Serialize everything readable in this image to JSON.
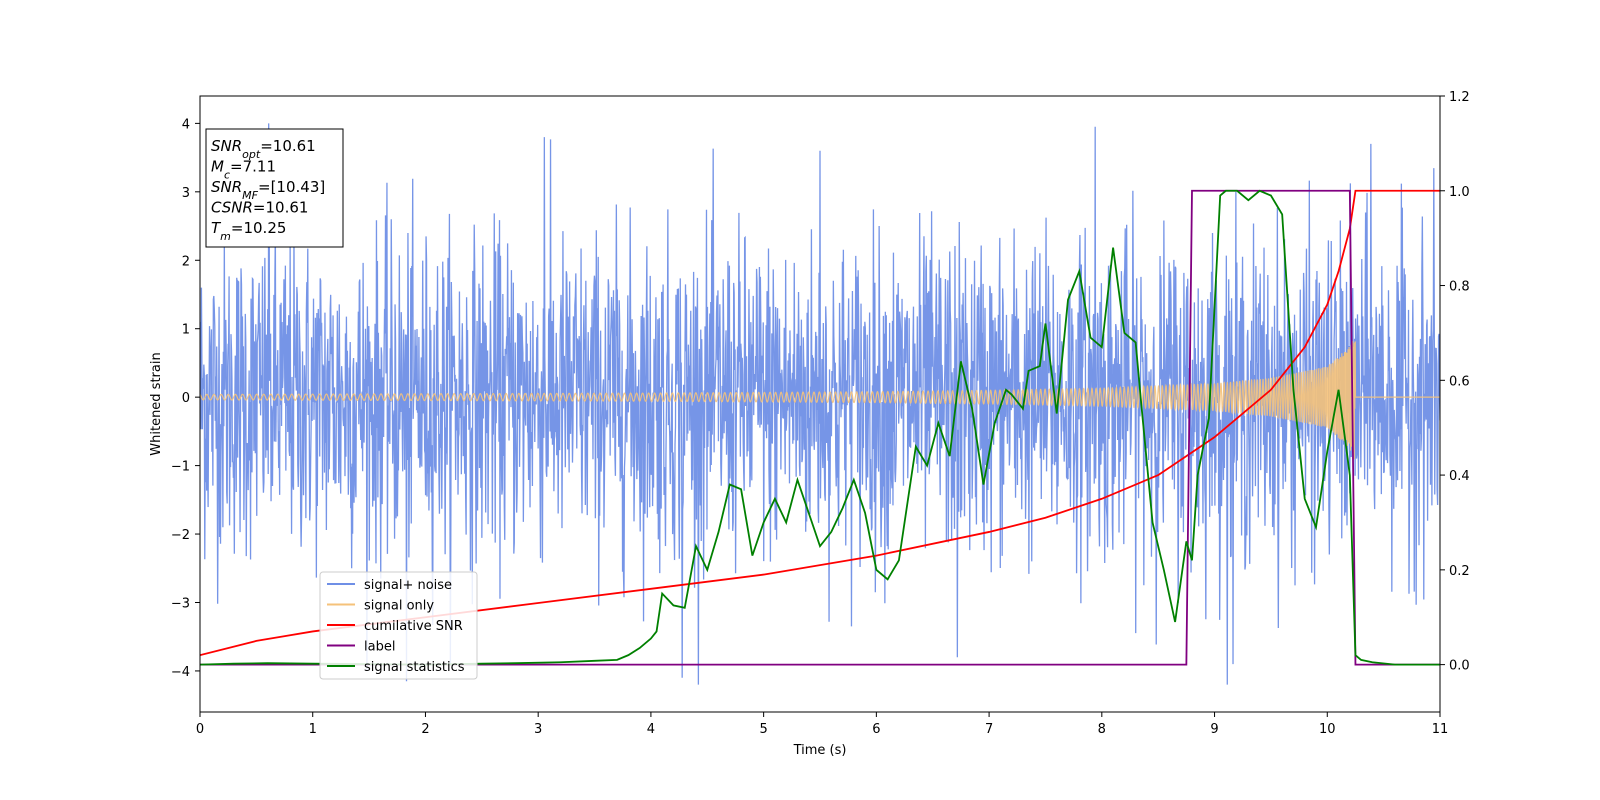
{
  "chart_data": {
    "type": "line",
    "xlabel": "Time (s)",
    "ylabel": "Whitened strain",
    "xlim": [
      0,
      11
    ],
    "ylim": [
      -4.6,
      4.4
    ],
    "y2lim": [
      -0.1,
      1.2
    ],
    "x_ticks": [
      0,
      1,
      2,
      3,
      4,
      5,
      6,
      7,
      8,
      9,
      10,
      11
    ],
    "y_ticks": [
      -4,
      -3,
      -2,
      -1,
      0,
      1,
      2,
      3,
      4
    ],
    "y2_ticks": [
      0.0,
      0.2,
      0.4,
      0.6,
      0.8,
      1.0,
      1.2
    ],
    "x_tick_labels": [
      "0",
      "1",
      "2",
      "3",
      "4",
      "5",
      "6",
      "7",
      "8",
      "9",
      "10",
      "11"
    ],
    "y_tick_labels": [
      "−4",
      "−3",
      "−2",
      "−1",
      "0",
      "1",
      "2",
      "3",
      "4"
    ],
    "y2_tick_labels": [
      "0.0",
      "0.2",
      "0.4",
      "0.6",
      "0.8",
      "1.0",
      "1.2"
    ],
    "legend_position": "lower-left",
    "info_box": {
      "position": "top-left",
      "lines": [
        {
          "var": "SNR",
          "sub": "opt",
          "value": "=10.61"
        },
        {
          "var": "M",
          "sub": "c",
          "value": "=7.11"
        },
        {
          "var": "SNR",
          "sub": "MF",
          "value": "=[10.43]"
        },
        {
          "var": "CSNR",
          "sub": "",
          "value": "=10.61"
        },
        {
          "var": "T",
          "sub": "m",
          "value": "=10.25"
        }
      ]
    },
    "series": [
      {
        "name": "signal+ noise",
        "color": "#6f8fe6",
        "axis": "left",
        "kind": "noise",
        "x_range": [
          0,
          11
        ],
        "std": 1.15,
        "peak_values": [
          4.0,
          -4.15,
          3.8,
          -4.1,
          3.6,
          -3.8,
          3.95,
          -3.9,
          3.7
        ]
      },
      {
        "name": "signal only",
        "color": "#f5c27a",
        "axis": "left",
        "kind": "chirp",
        "x_range": [
          0,
          11
        ],
        "merger_time": 10.25,
        "envelope": {
          "x": [
            0,
            2,
            4,
            6,
            7,
            8,
            9,
            9.5,
            10,
            10.2,
            10.25,
            10.26,
            11
          ],
          "y": [
            0.04,
            0.05,
            0.06,
            0.08,
            0.1,
            0.13,
            0.2,
            0.28,
            0.45,
            0.75,
            1.0,
            0.0,
            0.0
          ]
        }
      },
      {
        "name": "cumilative SNR",
        "color": "#ff0000",
        "axis": "right",
        "x": [
          0,
          0.5,
          1,
          2,
          3,
          4,
          5,
          6,
          7,
          7.5,
          8,
          8.5,
          9,
          9.5,
          9.8,
          10,
          10.1,
          10.2,
          10.25,
          11
        ],
        "y": [
          0.02,
          0.05,
          0.07,
          0.1,
          0.13,
          0.16,
          0.19,
          0.23,
          0.28,
          0.31,
          0.35,
          0.4,
          0.48,
          0.58,
          0.67,
          0.76,
          0.83,
          0.92,
          1.0,
          1.0
        ]
      },
      {
        "name": "label",
        "color": "#800080",
        "axis": "right",
        "x": [
          0,
          8.75,
          8.8,
          10.2,
          10.25,
          11
        ],
        "y": [
          0.0,
          0.0,
          1.0,
          1.0,
          0.0,
          0.0
        ]
      },
      {
        "name": "signal statistics",
        "color": "#008000",
        "axis": "right",
        "x": [
          0,
          0.3,
          0.6,
          1,
          1.5,
          2,
          2.5,
          2.8,
          3.2,
          3.5,
          3.7,
          3.8,
          3.9,
          4.0,
          4.05,
          4.1,
          4.2,
          4.3,
          4.4,
          4.5,
          4.6,
          4.7,
          4.8,
          4.9,
          5.0,
          5.1,
          5.2,
          5.3,
          5.4,
          5.5,
          5.6,
          5.7,
          5.8,
          5.9,
          6.0,
          6.1,
          6.2,
          6.25,
          6.35,
          6.45,
          6.55,
          6.65,
          6.75,
          6.85,
          6.95,
          7.05,
          7.15,
          7.2,
          7.3,
          7.35,
          7.45,
          7.5,
          7.6,
          7.7,
          7.8,
          7.9,
          8.0,
          8.1,
          8.2,
          8.3,
          8.35,
          8.45,
          8.55,
          8.65,
          8.75,
          8.8,
          8.85,
          8.95,
          9.05,
          9.1,
          9.2,
          9.3,
          9.4,
          9.5,
          9.6,
          9.7,
          9.8,
          9.9,
          10.0,
          10.1,
          10.2,
          10.25,
          10.3,
          10.4,
          10.6,
          11
        ],
        "y": [
          0.0,
          0.002,
          0.003,
          0.002,
          0.001,
          0.0,
          0.002,
          0.003,
          0.005,
          0.008,
          0.01,
          0.02,
          0.035,
          0.055,
          0.07,
          0.15,
          0.125,
          0.12,
          0.25,
          0.2,
          0.28,
          0.38,
          0.37,
          0.23,
          0.3,
          0.35,
          0.3,
          0.39,
          0.32,
          0.25,
          0.28,
          0.33,
          0.39,
          0.32,
          0.2,
          0.18,
          0.22,
          0.3,
          0.46,
          0.42,
          0.51,
          0.44,
          0.64,
          0.54,
          0.38,
          0.51,
          0.58,
          0.57,
          0.54,
          0.62,
          0.63,
          0.72,
          0.53,
          0.77,
          0.83,
          0.69,
          0.67,
          0.88,
          0.7,
          0.68,
          0.55,
          0.3,
          0.2,
          0.09,
          0.26,
          0.22,
          0.4,
          0.52,
          0.99,
          1.0,
          1.0,
          0.98,
          1.0,
          0.99,
          0.95,
          0.58,
          0.35,
          0.29,
          0.45,
          0.58,
          0.4,
          0.02,
          0.01,
          0.005,
          0.0,
          0.0
        ]
      }
    ]
  }
}
